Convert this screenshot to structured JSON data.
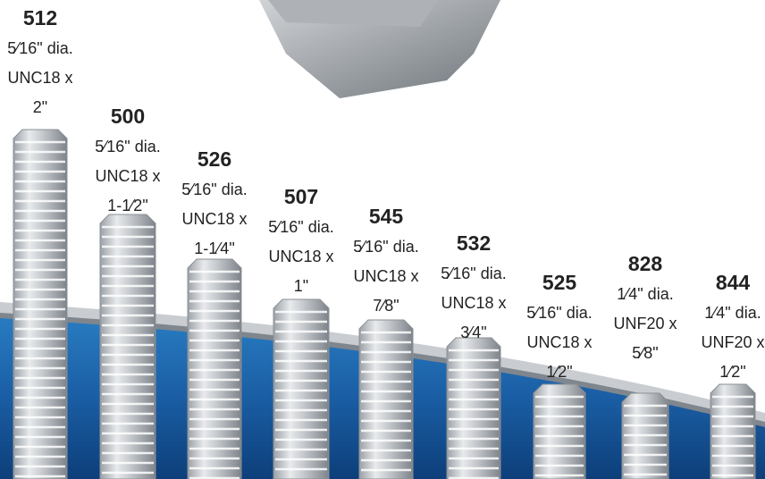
{
  "items": [
    {
      "code": "512",
      "lines": [
        "5⁄16\" dia.",
        "UNC18 x",
        "2\""
      ]
    },
    {
      "code": "500",
      "lines": [
        "5⁄16\" dia.",
        "UNC18 x",
        "1-1⁄2\""
      ]
    },
    {
      "code": "526",
      "lines": [
        "5⁄16\" dia.",
        "UNC18 x",
        "1-1⁄4\""
      ]
    },
    {
      "code": "507",
      "lines": [
        "5⁄16\" dia.",
        "UNC18 x",
        "1\""
      ]
    },
    {
      "code": "545",
      "lines": [
        "5⁄16\" dia.",
        "UNC18 x",
        "7⁄8\""
      ]
    },
    {
      "code": "532",
      "lines": [
        "5⁄16\" dia.",
        "UNC18 x",
        "3⁄4\""
      ]
    },
    {
      "code": "525",
      "lines": [
        "5⁄16\" dia.",
        "UNC18 x",
        "1⁄2\""
      ]
    },
    {
      "code": "828",
      "lines": [
        "1⁄4\" dia.",
        "UNF20 x",
        "5⁄8\""
      ]
    },
    {
      "code": "844",
      "lines": [
        "1⁄4\" dia.",
        "UNF20 x",
        "1⁄2\""
      ]
    }
  ]
}
